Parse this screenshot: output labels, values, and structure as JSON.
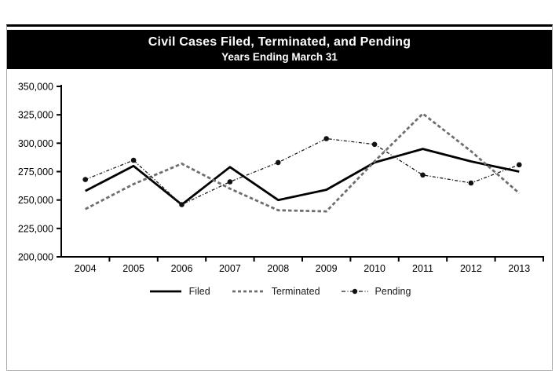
{
  "chart_data": {
    "type": "line",
    "title": "Civil Cases Filed, Terminated, and Pending",
    "subtitle": "Years Ending March 31",
    "categories": [
      "2004",
      "2005",
      "2006",
      "2007",
      "2008",
      "2009",
      "2010",
      "2011",
      "2012",
      "2013"
    ],
    "series": [
      {
        "name": "Filed",
        "style": "solid",
        "color": "#000000",
        "values": [
          258000,
          280000,
          246000,
          279000,
          250000,
          259000,
          283000,
          295000,
          284000,
          275000
        ]
      },
      {
        "name": "Terminated",
        "style": "dashed",
        "color": "#6e6e6e",
        "values": [
          242000,
          264000,
          282000,
          260000,
          241000,
          240000,
          284000,
          326000,
          293000,
          256000
        ]
      },
      {
        "name": "Pending",
        "style": "dash-dot",
        "marker": "circle",
        "color": "#1a1a1a",
        "values": [
          268000,
          285000,
          246000,
          266000,
          283000,
          304000,
          299000,
          272000,
          265000,
          281000
        ]
      }
    ],
    "xlabel": "",
    "ylabel": "",
    "ylim": [
      200000,
      350000
    ],
    "ytick_step": 25000,
    "ytick_labels": [
      "200,000",
      "225,000",
      "250,000",
      "275,000",
      "300,000",
      "325,000",
      "350,000"
    ],
    "legend_position": "bottom",
    "grid": false
  }
}
